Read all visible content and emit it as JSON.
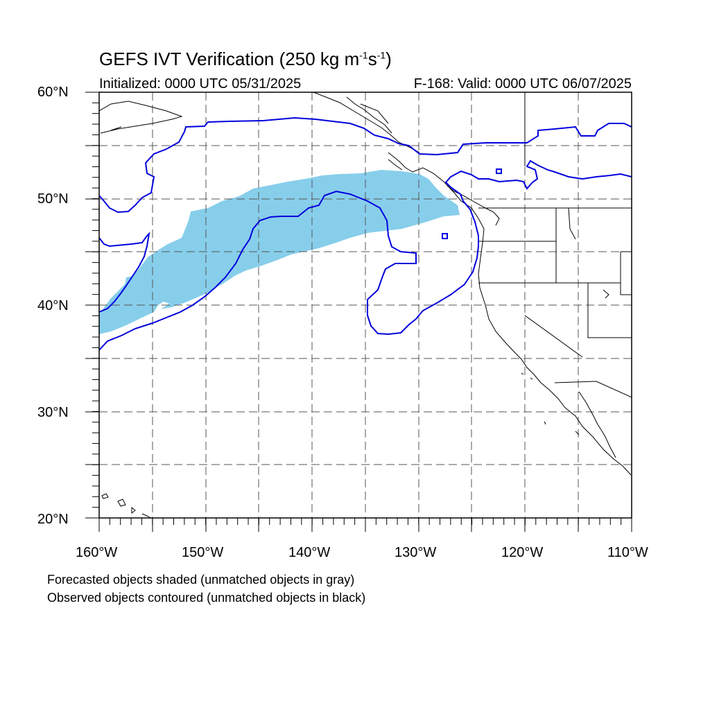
{
  "title": {
    "main": "GEFS IVT Verification (250 kg m",
    "exp1": "-1",
    "mid": "s",
    "exp2": "-1",
    "end": ")"
  },
  "subtitle": {
    "left": "Initialized: 0000 UTC 05/31/2025",
    "right": "F-168: Valid: 0000 UTC 06/07/2025"
  },
  "axes": {
    "lat_labels": [
      "60°N",
      "50°N",
      "40°N",
      "30°N",
      "20°N"
    ],
    "lon_labels": [
      "160°W",
      "150°W",
      "140°W",
      "130°W",
      "120°W",
      "110°W"
    ],
    "lat_range": [
      20,
      60
    ],
    "lon_range": [
      -160,
      -110
    ]
  },
  "legend": {
    "line1": "Forecasted objects shaded (unmatched objects in gray)",
    "line2": "Observed objects contoured (unmatched objects in black)"
  },
  "colors": {
    "forecast_fill": "#87ceeb",
    "observed_contour": "#0000dd",
    "coastline": "#000000",
    "grid": "#555555"
  }
}
